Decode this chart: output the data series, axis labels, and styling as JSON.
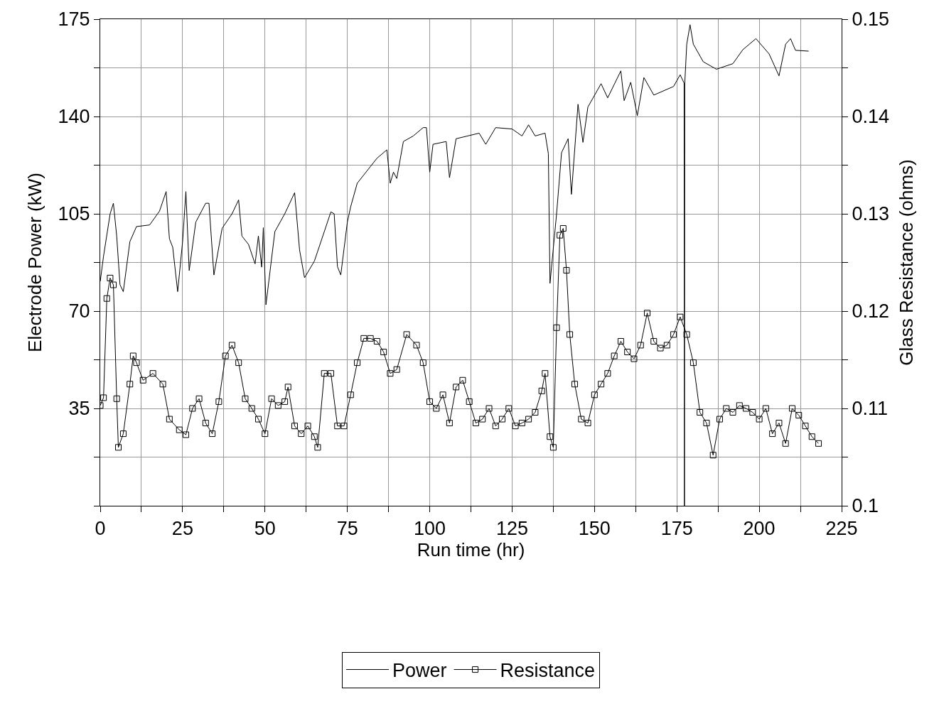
{
  "chart_data": {
    "type": "line",
    "xlabel": "Run time (hr)",
    "ylabel": "Electrode Power (kW)",
    "y2label": "Glass Resistance (ohms)",
    "xlim": [
      0,
      225
    ],
    "xticks": [
      0,
      {
        "value": 12.5,
        "label": null
      },
      25,
      {
        "value": 37.5,
        "label": null
      },
      50,
      {
        "value": 62.5,
        "label": null
      },
      75,
      {
        "value": 87.5,
        "label": null
      },
      100,
      {
        "value": 112.5,
        "label": null
      },
      125,
      {
        "value": 137.5,
        "label": null
      },
      150,
      {
        "value": 162.5,
        "label": null
      },
      175,
      {
        "value": 187.5,
        "label": null
      },
      200,
      {
        "value": 212.5,
        "label": null
      },
      225
    ],
    "ylim": [
      0,
      175
    ],
    "yticks": [
      {
        "value": 0,
        "label": null
      },
      {
        "value": 17.5,
        "label": null
      },
      35,
      {
        "value": 52.5,
        "label": null
      },
      70,
      {
        "value": 87.5,
        "label": null
      },
      105,
      {
        "value": 122.5,
        "label": null
      },
      140,
      {
        "value": 157.5,
        "label": null
      },
      175
    ],
    "y2lim": [
      0.1,
      0.15
    ],
    "y2ticks": [
      0.1,
      {
        "value": 0.105,
        "label": null
      },
      0.11,
      {
        "value": 0.115,
        "label": null
      },
      0.12,
      {
        "value": 0.125,
        "label": null
      },
      0.13,
      {
        "value": 0.135,
        "label": null
      },
      0.14,
      {
        "value": 0.145,
        "label": null
      },
      0.15
    ],
    "grid": true,
    "legend": "bottom",
    "series": [
      {
        "name": "Power",
        "color": "#000000",
        "marker": "none",
        "line_style": "solid",
        "x": [
          0,
          1,
          3,
          4,
          5,
          6,
          7,
          9,
          11,
          15,
          18,
          20,
          21,
          22,
          23.5,
          25,
          26,
          27,
          29,
          32,
          33,
          34.5,
          37,
          40,
          42,
          43,
          45,
          47,
          48,
          49,
          49.5,
          50.3,
          53,
          56,
          59,
          60.5,
          62,
          65,
          68,
          70,
          71,
          72,
          73,
          75,
          76,
          78,
          80,
          84,
          87,
          88,
          89,
          90,
          92,
          95,
          98,
          99,
          100,
          101,
          105,
          106,
          108,
          115,
          117,
          120,
          125,
          128,
          130,
          132,
          135,
          136,
          136.5,
          138.5,
          140,
          142,
          143,
          145,
          146.5,
          148,
          152,
          154,
          158,
          159,
          161,
          163,
          165,
          168,
          174,
          176,
          177.2,
          177.3,
          177.4,
          178,
          179,
          180,
          183,
          187,
          192,
          195,
          199,
          203,
          206,
          208,
          209.5,
          211,
          215
        ],
        "values": [
          80.7,
          89.7,
          105,
          108.8,
          97,
          79.5,
          77,
          95,
          100.4,
          101,
          106,
          113,
          96,
          93,
          77,
          95,
          113,
          84.6,
          102,
          108.8,
          108.8,
          83,
          99.8,
          105,
          110,
          97,
          94,
          87,
          97,
          85.8,
          100,
          72.3,
          98.6,
          105,
          112.6,
          92,
          82,
          88,
          98.6,
          105.7,
          105,
          86,
          83,
          102,
          107.5,
          116,
          119,
          125,
          128,
          116,
          120,
          117.7,
          131,
          133,
          136,
          136,
          120,
          130,
          131,
          118,
          132,
          134,
          130,
          136,
          135.5,
          133,
          137,
          133,
          134,
          126.6,
          80,
          105,
          127,
          132,
          112,
          144.4,
          130.7,
          143.4,
          151.8,
          146.7,
          156.4,
          145.7,
          152.3,
          140.3,
          154,
          147.7,
          150.8,
          155,
          152,
          0,
          152,
          166,
          173,
          166,
          159.7,
          157,
          159,
          164,
          168,
          162.5,
          154.6,
          166,
          168,
          163.8,
          163.5
        ]
      },
      {
        "name": "Resistance",
        "color": "#000000",
        "marker": "square",
        "line_style": "solid",
        "axis": "y2",
        "x": [
          0,
          1,
          2,
          3,
          4,
          5,
          5.5,
          7,
          9,
          10,
          11,
          13,
          16,
          19,
          21,
          24,
          26,
          28,
          30,
          32,
          34,
          36,
          38,
          40,
          42,
          44,
          46,
          48,
          50,
          52,
          54,
          56,
          57,
          59,
          61,
          63,
          65,
          66,
          68,
          70,
          72,
          74,
          76,
          78,
          80,
          82,
          84,
          86,
          88,
          90,
          93,
          96,
          98,
          100,
          102,
          104,
          106,
          108,
          110,
          112,
          114,
          116,
          118,
          120,
          122,
          124,
          126,
          128,
          130,
          132,
          134,
          135,
          136.5,
          137.5,
          138.5,
          139.5,
          140.5,
          141.5,
          142.5,
          144,
          146,
          148,
          150,
          152,
          154,
          156,
          158,
          160,
          162,
          164,
          166,
          168,
          170,
          172,
          174,
          176,
          178,
          180,
          182,
          184,
          186,
          188,
          190,
          192,
          194,
          196,
          198,
          200,
          202,
          204,
          206,
          208,
          210,
          212,
          214,
          216,
          218
        ],
        "values": [
          0.1103,
          0.1111,
          0.1213,
          0.1234,
          0.1227,
          0.111,
          0.106,
          0.1074,
          0.1125,
          0.1154,
          0.1147,
          0.1129,
          0.1136,
          0.1125,
          0.1089,
          0.1078,
          0.1073,
          0.11,
          0.111,
          0.1085,
          0.1074,
          0.1107,
          0.1154,
          0.1165,
          0.1147,
          0.111,
          0.11,
          0.1089,
          0.1074,
          0.111,
          0.1103,
          0.1107,
          0.1122,
          0.1082,
          0.1074,
          0.1082,
          0.1071,
          0.106,
          0.1136,
          0.1136,
          0.1082,
          0.1082,
          0.1114,
          0.1147,
          0.1172,
          0.1172,
          0.1169,
          0.1158,
          0.1136,
          0.114,
          0.1176,
          0.1165,
          0.1147,
          0.1107,
          0.11,
          0.1114,
          0.1085,
          0.1122,
          0.1129,
          0.1107,
          0.1085,
          0.1089,
          0.11,
          0.1082,
          0.1089,
          0.11,
          0.1082,
          0.1085,
          0.1089,
          0.1096,
          0.1118,
          0.1136,
          0.1071,
          0.106,
          0.1183,
          0.1278,
          0.1285,
          0.1242,
          0.1176,
          0.1125,
          0.1089,
          0.1085,
          0.1114,
          0.1125,
          0.1136,
          0.1154,
          0.1169,
          0.1158,
          0.1151,
          0.1165,
          0.1198,
          0.1169,
          0.1162,
          0.1165,
          0.1176,
          0.1194,
          0.1176,
          0.1147,
          0.1096,
          0.1085,
          0.1052,
          0.1089,
          0.11,
          0.1096,
          0.1103,
          0.11,
          0.1096,
          0.1089,
          0.11,
          0.1074,
          0.1085,
          0.1064,
          0.11,
          0.1093,
          0.1082,
          0.1071,
          0.1064
        ]
      }
    ]
  }
}
